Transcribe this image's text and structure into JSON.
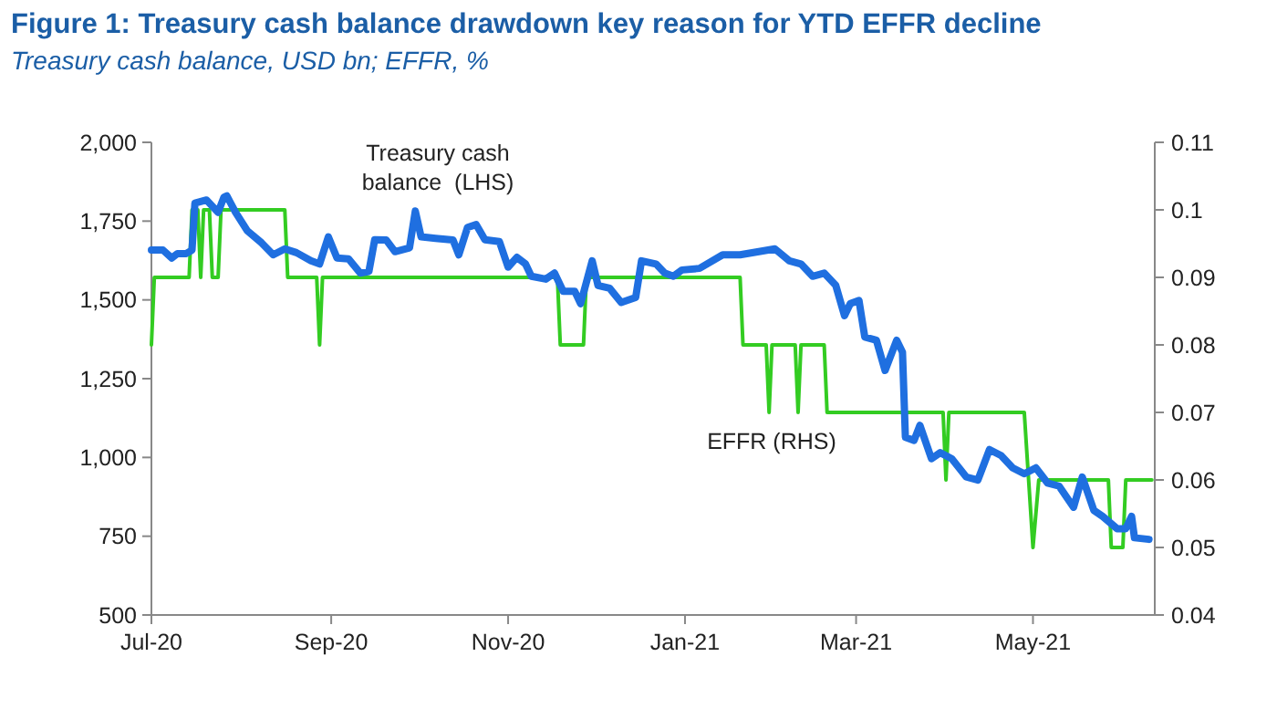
{
  "chart_data": {
    "type": "line",
    "title": "Figure 1: Treasury cash balance drawdown key reason for YTD EFFR decline",
    "subtitle": "Treasury cash balance, USD bn; EFFR, %",
    "xlim": [
      "2020-07-01",
      "2021-06-12"
    ],
    "xticks": [
      {
        "value": "2020-07-01",
        "label": "Jul-20"
      },
      {
        "value": "2020-09-01",
        "label": "Sep-20"
      },
      {
        "value": "2020-11-01",
        "label": "Nov-20"
      },
      {
        "value": "2021-01-01",
        "label": "Jan-21"
      },
      {
        "value": "2021-03-01",
        "label": "Mar-21"
      },
      {
        "value": "2021-05-01",
        "label": "May-21"
      }
    ],
    "ylim": [
      500,
      2000
    ],
    "yticks": [
      {
        "value": 500,
        "label": "500"
      },
      {
        "value": 750,
        "label": "750"
      },
      {
        "value": 1000,
        "label": "1,000"
      },
      {
        "value": 1250,
        "label": "1,250"
      },
      {
        "value": 1500,
        "label": "1,500"
      },
      {
        "value": 1750,
        "label": "1,750"
      },
      {
        "value": 2000,
        "label": "2,000"
      }
    ],
    "y2lim": [
      0.04,
      0.11
    ],
    "y2ticks": [
      0.04,
      0.05,
      0.06,
      0.07,
      0.08,
      0.09,
      0.1,
      0.11
    ],
    "grid": false,
    "series": [
      {
        "name": "Treasury cash balance  (LHS)",
        "color": "#1f6fe0",
        "x": [
          "2020-07-01",
          "2020-07-05",
          "2020-07-08",
          "2020-07-10",
          "2020-07-13",
          "2020-07-15",
          "2020-07-16",
          "2020-07-20",
          "2020-07-24",
          "2020-07-26",
          "2020-07-27",
          "2020-07-30",
          "2020-08-03",
          "2020-08-08",
          "2020-08-12",
          "2020-08-16",
          "2020-08-20",
          "2020-08-25",
          "2020-08-28",
          "2020-08-31",
          "2020-09-03",
          "2020-09-07",
          "2020-09-11",
          "2020-09-14",
          "2020-09-16",
          "2020-09-20",
          "2020-09-23",
          "2020-09-28",
          "2020-09-30",
          "2020-10-02",
          "2020-10-07",
          "2020-10-13",
          "2020-10-15",
          "2020-10-18",
          "2020-10-21",
          "2020-10-24",
          "2020-10-29",
          "2020-11-01",
          "2020-11-04",
          "2020-11-07",
          "2020-11-09",
          "2020-11-14",
          "2020-11-17",
          "2020-11-20",
          "2020-11-24",
          "2020-11-26",
          "2020-11-30",
          "2020-12-02",
          "2020-12-06",
          "2020-12-10",
          "2020-12-15",
          "2020-12-17",
          "2020-12-22",
          "2020-12-25",
          "2020-12-28",
          "2020-12-31",
          "2021-01-06",
          "2021-01-14",
          "2021-01-20",
          "2021-02-01",
          "2021-02-06",
          "2021-02-10",
          "2021-02-14",
          "2021-02-18",
          "2021-02-22",
          "2021-02-25",
          "2021-02-27",
          "2021-03-02",
          "2021-03-04",
          "2021-03-08",
          "2021-03-11",
          "2021-03-15",
          "2021-03-17",
          "2021-03-18",
          "2021-03-21",
          "2021-03-23",
          "2021-03-27",
          "2021-03-30",
          "2021-04-03",
          "2021-04-08",
          "2021-04-12",
          "2021-04-16",
          "2021-04-20",
          "2021-04-24",
          "2021-04-28",
          "2021-05-02",
          "2021-05-06",
          "2021-05-10",
          "2021-05-15",
          "2021-05-18",
          "2021-05-22",
          "2021-05-25",
          "2021-05-30",
          "2021-06-02",
          "2021-06-04",
          "2021-06-05",
          "2021-06-10"
        ],
        "values": [
          1658,
          1658,
          1633,
          1647,
          1647,
          1658,
          1807,
          1817,
          1778,
          1826,
          1830,
          1778,
          1720,
          1681,
          1643,
          1662,
          1650,
          1624,
          1614,
          1700,
          1633,
          1630,
          1585,
          1590,
          1691,
          1690,
          1653,
          1665,
          1782,
          1700,
          1695,
          1690,
          1643,
          1730,
          1739,
          1691,
          1685,
          1604,
          1635,
          1614,
          1575,
          1566,
          1585,
          1527,
          1527,
          1488,
          1624,
          1546,
          1537,
          1492,
          1508,
          1624,
          1614,
          1585,
          1575,
          1595,
          1600,
          1643,
          1643,
          1662,
          1624,
          1614,
          1575,
          1585,
          1546,
          1450,
          1488,
          1498,
          1382,
          1372,
          1276,
          1372,
          1334,
          1064,
          1054,
          1102,
          996,
          1015,
          996,
          938,
          928,
          1025,
          1006,
          967,
          948,
          967,
          919,
          909,
          842,
          938,
          832,
          813,
          774,
          774,
          813,
          745,
          740
        ]
      },
      {
        "name": "EFFR (RHS)",
        "color": "#33cc22",
        "axis": "y2",
        "x": [
          "2020-07-01",
          "2020-07-02",
          "2020-07-14",
          "2020-07-15",
          "2020-07-17",
          "2020-07-18",
          "2020-07-19",
          "2020-07-21",
          "2020-07-22",
          "2020-07-24",
          "2020-07-25",
          "2020-08-16",
          "2020-08-17",
          "2020-08-27",
          "2020-08-28",
          "2020-08-29",
          "2020-11-18",
          "2020-11-19",
          "2020-11-27",
          "2020-11-28",
          "2021-01-20",
          "2021-01-21",
          "2021-01-29",
          "2021-01-30",
          "2021-01-31",
          "2021-02-08",
          "2021-02-09",
          "2021-02-10",
          "2021-02-18",
          "2021-02-19",
          "2021-03-31",
          "2021-04-01",
          "2021-04-02",
          "2021-04-28",
          "2021-05-01",
          "2021-05-03",
          "2021-05-27",
          "2021-05-28",
          "2021-06-01",
          "2021-06-02",
          "2021-06-11"
        ],
        "values": [
          0.08,
          0.09,
          0.09,
          0.1,
          0.1,
          0.09,
          0.1,
          0.1,
          0.09,
          0.09,
          0.1,
          0.1,
          0.09,
          0.09,
          0.08,
          0.09,
          0.09,
          0.08,
          0.08,
          0.09,
          0.09,
          0.08,
          0.08,
          0.07,
          0.08,
          0.08,
          0.07,
          0.08,
          0.08,
          0.07,
          0.07,
          0.06,
          0.07,
          0.07,
          0.05,
          0.06,
          0.06,
          0.05,
          0.05,
          0.06,
          0.06
        ]
      }
    ]
  }
}
